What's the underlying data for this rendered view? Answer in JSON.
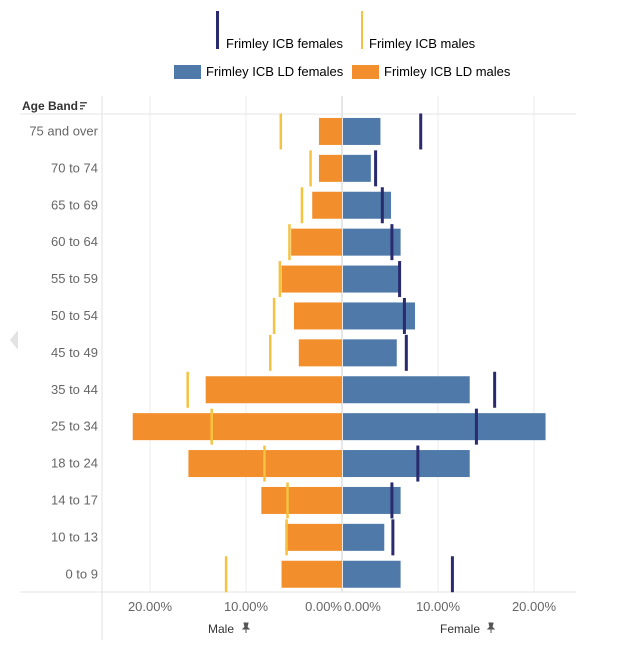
{
  "legend": {
    "females_line": "Frimley ICB females",
    "males_line": "Frimley ICB males",
    "ld_females": "Frimley ICB LD females",
    "ld_males": "Frimley ICB LD males"
  },
  "row_header": "Age Band",
  "axis_names": {
    "left": "Male",
    "right": "Female"
  },
  "colors": {
    "ld_female": "#4f79a8",
    "ld_male": "#f28e2b",
    "icb_female": "#2a2a6e",
    "icb_male": "#f5c242"
  },
  "chart_data": {
    "type": "bar",
    "orientation": "horizontal-population-pyramid",
    "categories": [
      "75 and over",
      "70 to 74",
      "65 to 69",
      "60 to 64",
      "55 to 59",
      "50 to 54",
      "45 to 49",
      "35 to 44",
      "25 to 34",
      "18 to 24",
      "14 to 17",
      "10 to 13",
      "0 to 9"
    ],
    "series": [
      {
        "name": "Frimley ICB LD females",
        "kind": "bar",
        "side": "right",
        "values": [
          3.9,
          2.9,
          5.0,
          6.0,
          6.0,
          7.5,
          5.6,
          13.2,
          21.1,
          13.2,
          6.0,
          4.3,
          6.0
        ]
      },
      {
        "name": "Frimley ICB LD males",
        "kind": "bar",
        "side": "left",
        "values": [
          2.4,
          2.4,
          3.1,
          5.3,
          6.3,
          5.0,
          4.5,
          14.2,
          21.8,
          16.0,
          8.4,
          5.9,
          6.3
        ]
      },
      {
        "name": "Frimley ICB females",
        "kind": "marker",
        "side": "right",
        "values": [
          8.2,
          3.5,
          4.2,
          5.2,
          6.0,
          6.5,
          6.7,
          15.9,
          14.0,
          7.9,
          5.2,
          5.3,
          11.5
        ]
      },
      {
        "name": "Frimley ICB males",
        "kind": "marker",
        "side": "left",
        "values": [
          6.4,
          3.3,
          4.2,
          5.5,
          6.5,
          7.1,
          7.5,
          16.1,
          13.6,
          8.1,
          5.7,
          5.8,
          12.1
        ]
      }
    ],
    "left_ticks": [
      "20.00%",
      "10.00%",
      "0.00%"
    ],
    "right_ticks": [
      "0.00%",
      "10.00%",
      "20.00%"
    ],
    "xlim": [
      0,
      25
    ]
  }
}
